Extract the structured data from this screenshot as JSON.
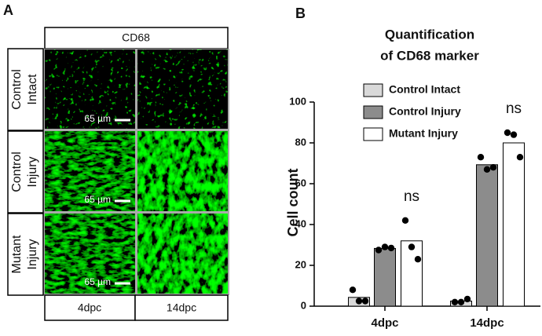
{
  "panel_a": {
    "label": "A",
    "column_header": "CD68",
    "row_labels": [
      [
        "Control",
        "Intact"
      ],
      [
        "Control",
        "Injury"
      ],
      [
        "Mutant",
        "Injury"
      ]
    ],
    "scale_bar": "65 µm",
    "column_labels": [
      "4dpc",
      "14dpc"
    ]
  },
  "chart_data": {
    "type": "bar",
    "panel_label": "B",
    "title": [
      "Quantification",
      "of CD68 marker"
    ],
    "y_label": "Cell count",
    "categories": [
      "4dpc",
      "14dpc"
    ],
    "series": [
      {
        "name": "Control Intact",
        "color": "#d9d9d9",
        "values": [
          4.3,
          2.5
        ],
        "points": [
          [
            8,
            2.5,
            2.5
          ],
          [
            2,
            2,
            3.5
          ]
        ]
      },
      {
        "name": "Control Injury",
        "color": "#8c8c8c",
        "values": [
          28.3,
          69.3
        ],
        "points": [
          [
            27.5,
            29,
            28.5
          ],
          [
            73,
            67,
            68
          ]
        ]
      },
      {
        "name": "Mutant Injury",
        "color": "#ffffff",
        "values": [
          32,
          80
        ],
        "points": [
          [
            42,
            29,
            23
          ],
          [
            85,
            84,
            73
          ]
        ]
      }
    ],
    "annotations": [
      "ns",
      "ns"
    ],
    "ylim": [
      0,
      100
    ],
    "yticks": [
      0,
      20,
      40,
      60,
      80,
      100
    ],
    "grid": false
  }
}
